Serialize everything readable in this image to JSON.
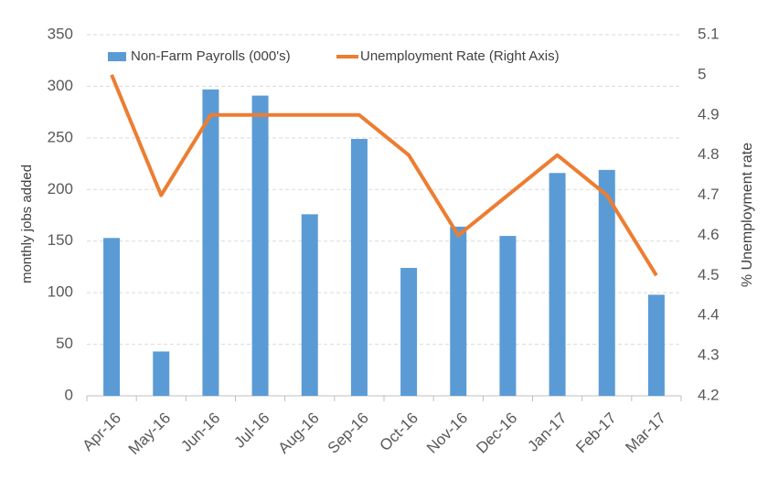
{
  "chart_data": {
    "type": "bar_line",
    "categories": [
      "Apr-16",
      "May-16",
      "Jun-16",
      "Jul-16",
      "Aug-16",
      "Sep-16",
      "Oct-16",
      "Nov-16",
      "Dec-16",
      "Jan-17",
      "Feb-17",
      "Mar-17"
    ],
    "series": [
      {
        "name": "Non-Farm Payrolls (000's)",
        "type": "bar",
        "color": "#5b9bd5",
        "values": [
          153,
          43,
          297,
          291,
          176,
          249,
          124,
          164,
          155,
          216,
          219,
          98
        ]
      },
      {
        "name": "Unemployment Rate (Right Axis)",
        "type": "line",
        "axis": "y2",
        "color": "#ed7d31",
        "values": [
          5.0,
          4.7,
          4.9,
          4.9,
          4.9,
          4.9,
          4.8,
          4.6,
          4.7,
          4.8,
          4.7,
          4.5
        ]
      }
    ],
    "ylabel": "monthly jobs added",
    "y2label": "% Unemployment rate",
    "ylim": [
      0,
      350
    ],
    "yticks": [
      0,
      50,
      100,
      150,
      200,
      250,
      300,
      350
    ],
    "y2lim": [
      4.2,
      5.1
    ],
    "y2ticks": [
      4.2,
      4.3,
      4.4,
      4.5,
      4.6,
      4.7,
      4.8,
      4.9,
      5,
      5.1
    ],
    "grid": true,
    "legend": "top"
  }
}
